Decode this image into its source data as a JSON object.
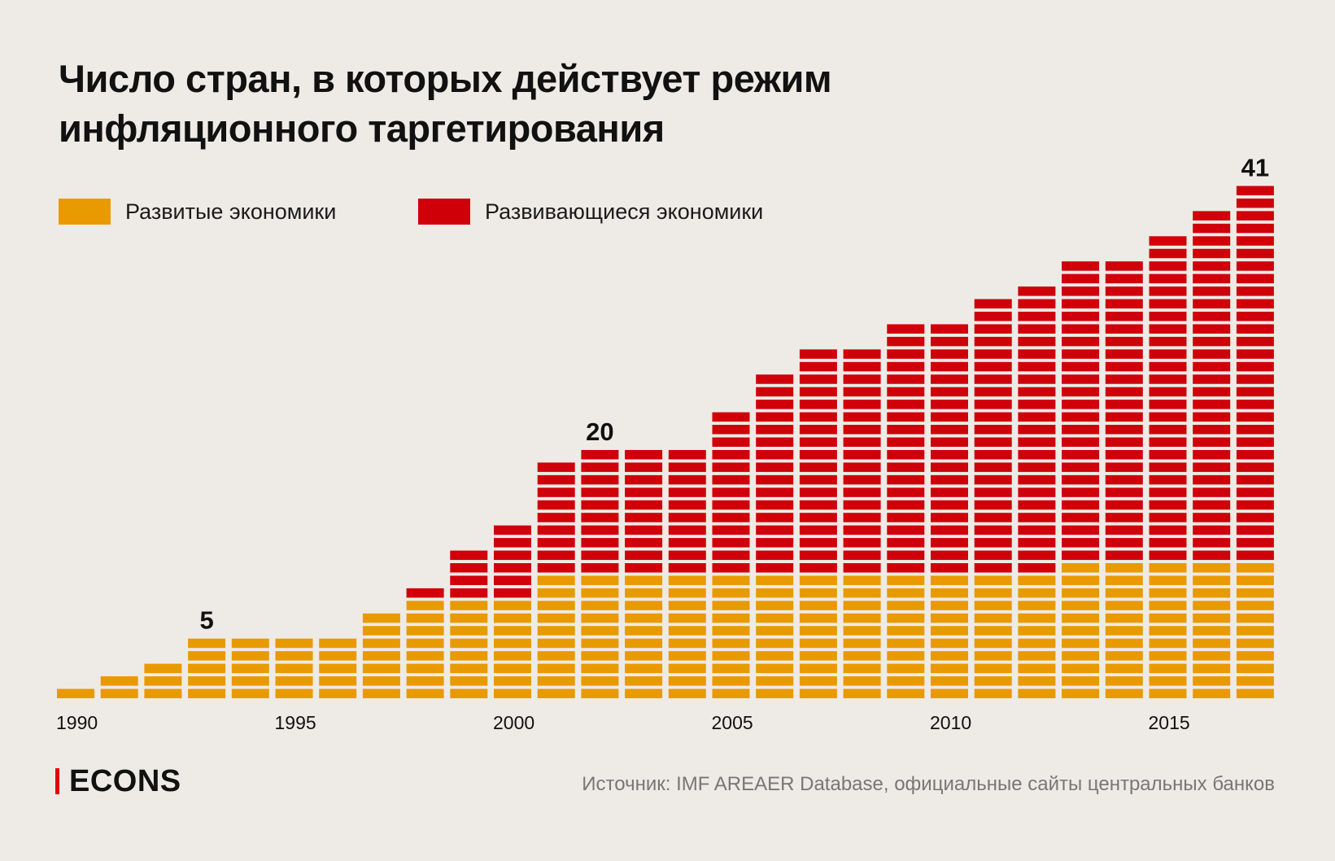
{
  "title_lines": [
    "Число стран, в которых действует режим",
    "инфляционного таргетирования"
  ],
  "legend": {
    "developed": {
      "label": "Развитые экономики",
      "color": "#E99A00"
    },
    "emerging": {
      "label": "Развивающиеся экономики",
      "color": "#D0000A"
    }
  },
  "brand": "ECONS",
  "source": "Источник: IMF AREAER Database, официальные сайты центральных банков",
  "chart_data": {
    "type": "bar",
    "stacked": true,
    "unit_blocks": true,
    "categories": [
      1990,
      1991,
      1992,
      1993,
      1994,
      1995,
      1996,
      1997,
      1998,
      1999,
      2000,
      2001,
      2002,
      2003,
      2004,
      2005,
      2006,
      2007,
      2008,
      2009,
      2010,
      2011,
      2012,
      2013,
      2014,
      2015,
      2016,
      2017
    ],
    "series": [
      {
        "name": "Развитые экономики",
        "color": "#E99A00",
        "values": [
          1,
          2,
          3,
          5,
          5,
          5,
          5,
          7,
          8,
          8,
          8,
          10,
          10,
          10,
          10,
          10,
          10,
          10,
          10,
          10,
          10,
          10,
          10,
          11,
          11,
          11,
          11,
          11
        ]
      },
      {
        "name": "Развивающиеся экономики",
        "color": "#D0000A",
        "values": [
          0,
          0,
          0,
          0,
          0,
          0,
          0,
          0,
          1,
          4,
          6,
          9,
          10,
          10,
          10,
          13,
          16,
          18,
          18,
          20,
          20,
          22,
          23,
          24,
          24,
          26,
          28,
          30
        ]
      }
    ],
    "x_tick_labels": [
      "1990",
      "1995",
      "2000",
      "2005",
      "2010",
      "2015"
    ],
    "x_tick_years": [
      1990,
      1995,
      2000,
      2005,
      2010,
      2015
    ],
    "annotations": [
      {
        "year": 1993,
        "text": "5"
      },
      {
        "year": 2002,
        "text": "20"
      },
      {
        "year": 2017,
        "text": "41"
      }
    ]
  }
}
